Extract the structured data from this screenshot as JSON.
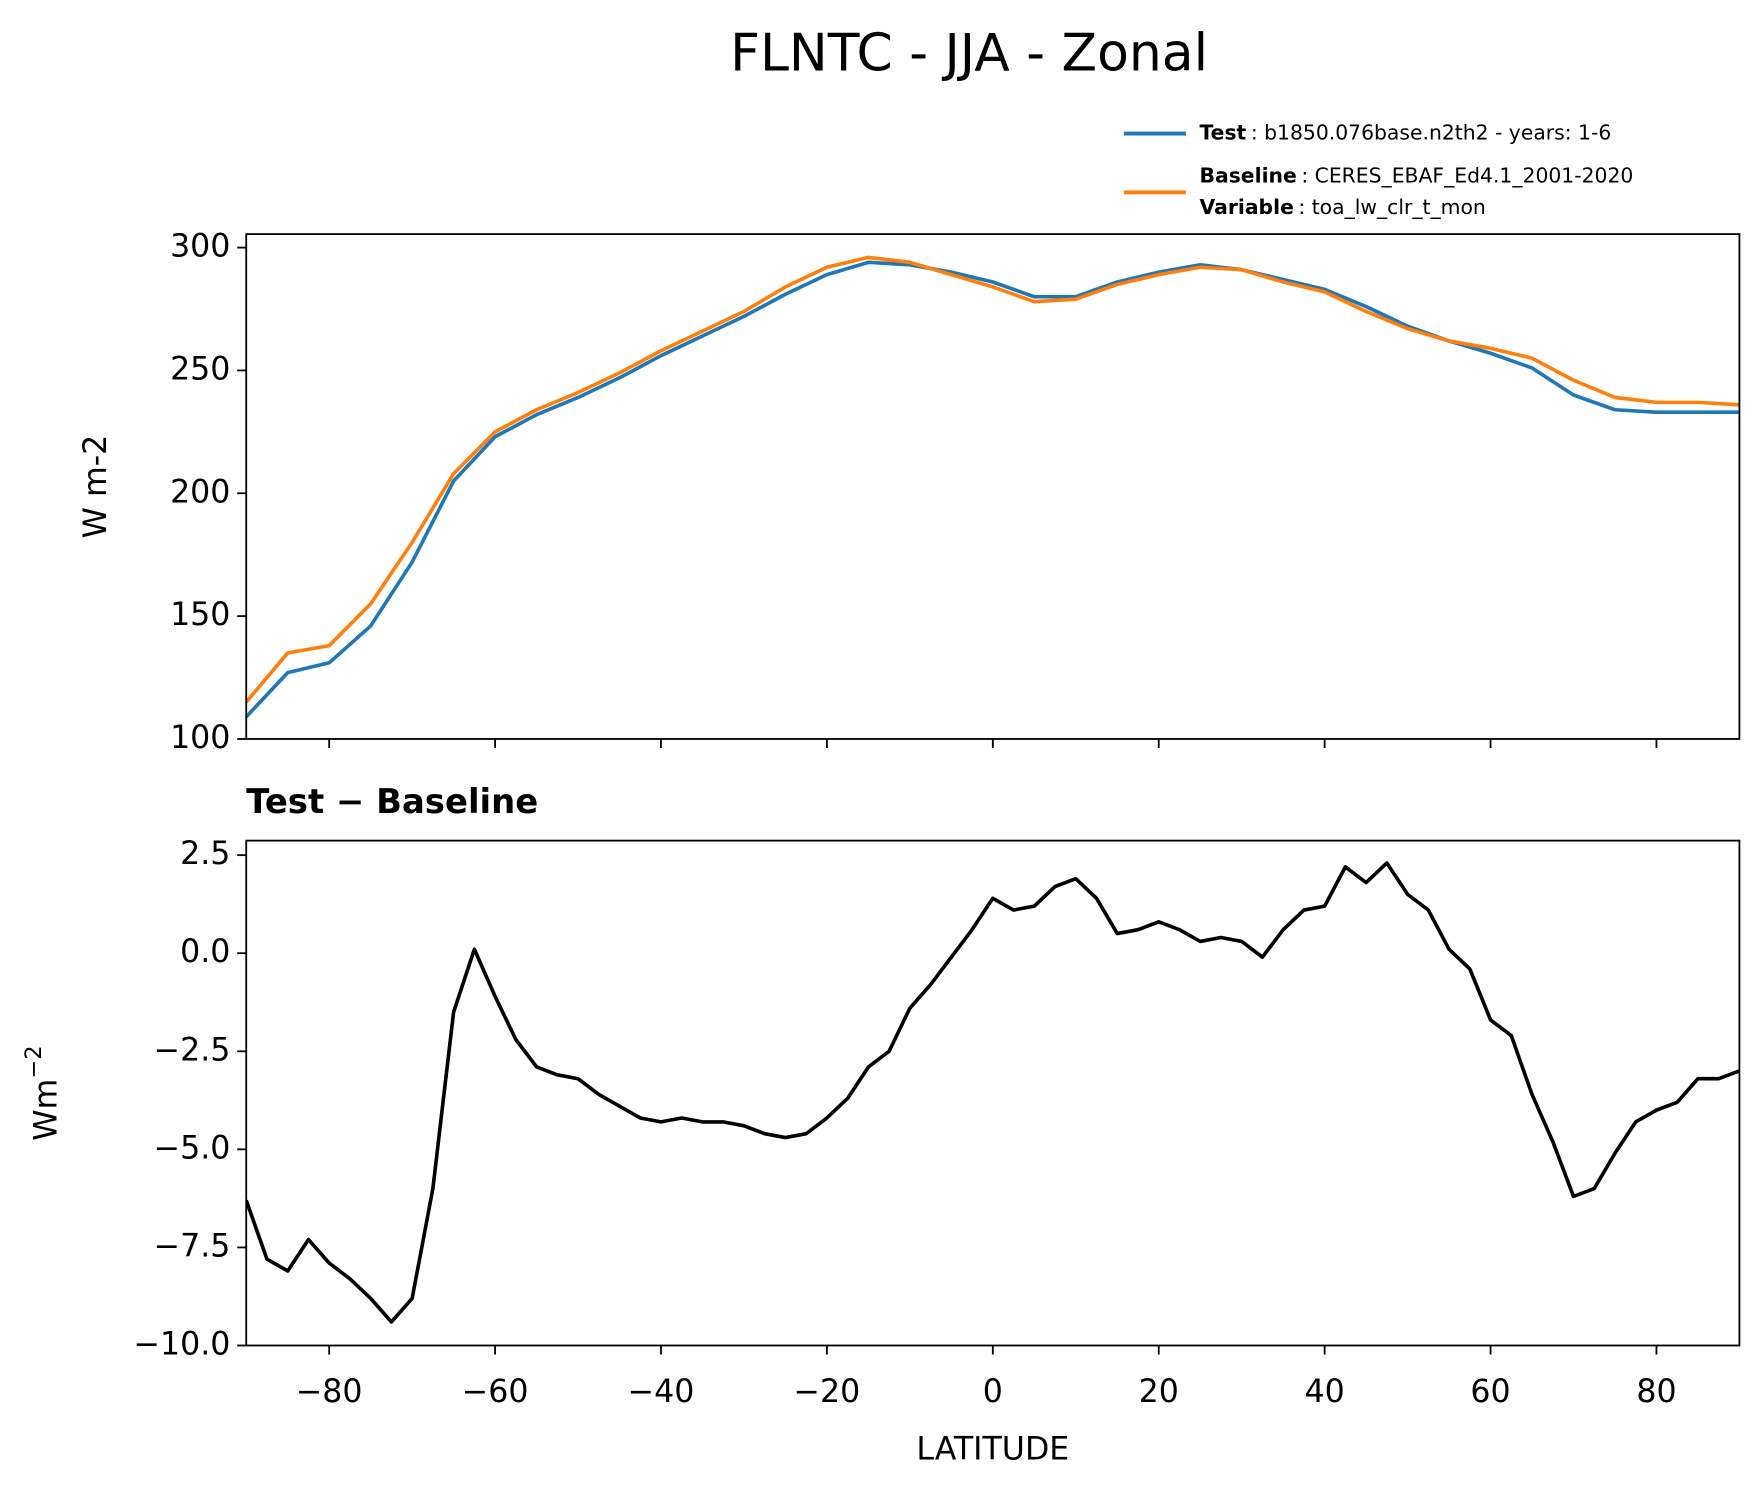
{
  "title": "FLNTC - JJA - Zonal",
  "chart_data": [
    {
      "type": "line",
      "ylabel": "W m-2",
      "x": [
        -90,
        -85,
        -80,
        -75,
        -70,
        -65,
        -60,
        -55,
        -50,
        -45,
        -40,
        -35,
        -30,
        -25,
        -20,
        -15,
        -10,
        -5,
        0,
        5,
        10,
        15,
        20,
        25,
        30,
        35,
        40,
        45,
        50,
        55,
        60,
        65,
        70,
        75,
        80,
        85,
        90
      ],
      "series": [
        {
          "name": "Test",
          "description": ": b1850.076base.n2th2 - years: 1-6",
          "color": "#1f77b4",
          "values": [
            109,
            127,
            131,
            146,
            172,
            205,
            223,
            232,
            239,
            247,
            256,
            264,
            272,
            281,
            289,
            294,
            293,
            290,
            286,
            280,
            280,
            286,
            290,
            293,
            291,
            287,
            283,
            276,
            268,
            262,
            257,
            251,
            240,
            234,
            233,
            233,
            233
          ]
        },
        {
          "name": "Baseline",
          "description": ": CERES_EBAF_Ed4.1_2001-2020",
          "color": "#ff7f0e",
          "values": [
            115,
            135,
            138,
            155,
            180,
            208,
            225,
            234,
            241,
            249,
            258,
            266,
            274,
            284,
            292,
            296,
            294,
            289,
            284,
            278,
            279,
            285,
            289,
            292,
            291,
            286,
            282,
            274,
            267,
            262,
            259,
            255,
            246,
            239,
            237,
            237,
            236
          ]
        }
      ],
      "legend_note": {
        "name": "Variable",
        "description": ": toa_lw_clr_t_mon"
      },
      "legend": "upper right",
      "xlim": [
        -90,
        90
      ],
      "xticks": [
        -80,
        -60,
        -40,
        -20,
        0,
        20,
        40,
        60,
        80
      ],
      "show_xtick_labels": false,
      "ylim": [
        100,
        305.5
      ],
      "yticks": [
        100,
        150,
        200,
        250,
        300
      ]
    },
    {
      "type": "line",
      "title": "Test − Baseline",
      "xlabel": "LATITUDE",
      "ylabel": "Wm",
      "ylabel_superscript": "−2",
      "x": [
        -90,
        -87.5,
        -85,
        -82.5,
        -80,
        -77.5,
        -75,
        -72.5,
        -70,
        -67.5,
        -65,
        -62.5,
        -60,
        -57.5,
        -55,
        -52.5,
        -50,
        -47.5,
        -45,
        -42.5,
        -40,
        -37.5,
        -35,
        -32.5,
        -30,
        -27.5,
        -25,
        -22.5,
        -20,
        -17.5,
        -15,
        -12.5,
        -10,
        -7.5,
        -5,
        -2.5,
        0,
        2.5,
        5,
        7.5,
        10,
        12.5,
        15,
        17.5,
        20,
        22.5,
        25,
        27.5,
        30,
        32.5,
        35,
        37.5,
        40,
        42.5,
        45,
        47.5,
        50,
        52.5,
        55,
        57.5,
        60,
        62.5,
        65,
        67.5,
        70,
        72.5,
        75,
        77.5,
        80,
        82.5,
        85,
        87.5,
        90
      ],
      "series": [
        {
          "name": "Test − Baseline",
          "color": "#000000",
          "values": [
            -6.3,
            -7.8,
            -8.1,
            -7.3,
            -7.9,
            -8.3,
            -8.8,
            -9.4,
            -8.8,
            -6.0,
            -1.5,
            0.1,
            -1.1,
            -2.2,
            -2.9,
            -3.1,
            -3.2,
            -3.6,
            -3.9,
            -4.2,
            -4.3,
            -4.2,
            -4.3,
            -4.3,
            -4.4,
            -4.6,
            -4.7,
            -4.6,
            -4.2,
            -3.7,
            -2.9,
            -2.5,
            -1.4,
            -0.8,
            -0.1,
            0.6,
            1.4,
            1.1,
            1.2,
            1.7,
            1.9,
            1.4,
            0.5,
            0.6,
            0.8,
            0.6,
            0.3,
            0.4,
            0.3,
            -0.1,
            0.6,
            1.1,
            1.2,
            2.2,
            1.8,
            2.3,
            1.5,
            1.1,
            0.1,
            -0.4,
            -1.7,
            -2.1,
            -3.6,
            -4.8,
            -6.2,
            -6.0,
            -5.1,
            -4.3,
            -4.0,
            -3.8,
            -3.2,
            -3.2,
            -3.0
          ]
        }
      ],
      "xlim": [
        -90,
        90
      ],
      "xticks": [
        {
          "value": -80,
          "label": "−80"
        },
        {
          "value": -60,
          "label": "−60"
        },
        {
          "value": -40,
          "label": "−40"
        },
        {
          "value": -20,
          "label": "−20"
        },
        0,
        20,
        40,
        60,
        80
      ],
      "show_xtick_labels": true,
      "ylim": [
        -10,
        2.87
      ],
      "yticks": [
        2.5,
        {
          "value": 0,
          "label": "0.0"
        },
        {
          "value": -2.5,
          "label": "−2.5"
        },
        {
          "value": -5,
          "label": "−5.0"
        },
        {
          "value": -7.5,
          "label": "−7.5"
        },
        {
          "value": -10,
          "label": "−10.0"
        }
      ]
    }
  ]
}
